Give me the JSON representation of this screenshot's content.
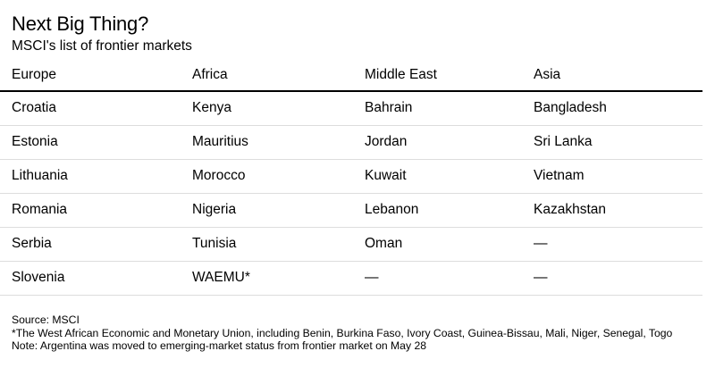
{
  "title": "Next Big Thing?",
  "subtitle": "MSCI's list of frontier markets",
  "table": {
    "headers": [
      "Europe",
      "Africa",
      "Middle East",
      "Asia"
    ],
    "rows": [
      [
        "Croatia",
        "Kenya",
        "Bahrain",
        "Bangladesh"
      ],
      [
        "Estonia",
        "Mauritius",
        "Jordan",
        "Sri Lanka"
      ],
      [
        "Lithuania",
        "Morocco",
        "Kuwait",
        "Vietnam"
      ],
      [
        "Romania",
        "Nigeria",
        "Lebanon",
        "Kazakhstan"
      ],
      [
        "Serbia",
        "Tunisia",
        "Oman",
        "—"
      ],
      [
        "Slovenia",
        "WAEMU*",
        "—",
        "—"
      ]
    ]
  },
  "notes": {
    "source": "Source: MSCI",
    "footnote": "*The West African Economic and Monetary Union, including Benin, Burkina Faso, Ivory Coast, Guinea-Bissau, Mali, Niger, Senegal, Togo",
    "note": "Note: Argentina was moved to emerging-market status from frontier market on May 28"
  }
}
